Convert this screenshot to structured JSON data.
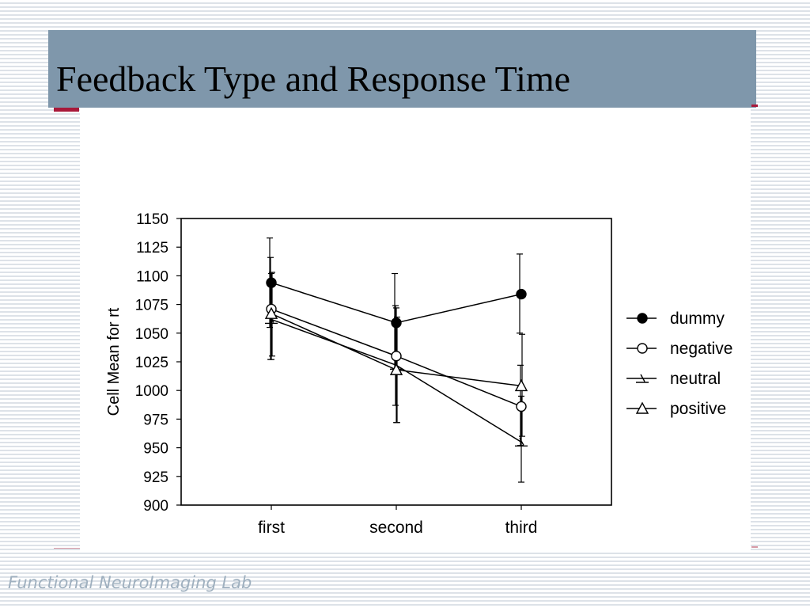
{
  "slide": {
    "title": "Feedback Type and Response Time",
    "footer": "Functional NeuroImaging Lab"
  },
  "chart_data": {
    "type": "line",
    "title": "",
    "xlabel": "",
    "ylabel": "Cell Mean for rt",
    "categories": [
      "first",
      "second",
      "third"
    ],
    "ylim": [
      900,
      1150
    ],
    "yticks": [
      900,
      925,
      950,
      975,
      1000,
      1025,
      1050,
      1075,
      1100,
      1125,
      1150
    ],
    "grid": false,
    "legend_position": "right",
    "error_bars": true,
    "series": [
      {
        "name": "dummy",
        "marker": "filled-circle",
        "values": [
          1094,
          1059,
          1084
        ],
        "error_low": [
          1055,
          1016,
          1050
        ],
        "error_high": [
          1133,
          1102,
          1119
        ]
      },
      {
        "name": "negative",
        "marker": "open-circle",
        "values": [
          1071,
          1030,
          986
        ],
        "error_low": [
          1027,
          987,
          952
        ],
        "error_high": [
          1116,
          1074,
          1022
        ]
      },
      {
        "name": "neutral",
        "marker": "tick-dash",
        "values": [
          1062,
          1022,
          955
        ],
        "error_low": [
          1027,
          972,
          920
        ],
        "error_high": [
          1102,
          1072,
          995
        ]
      },
      {
        "name": "positive",
        "marker": "open-triangle",
        "values": [
          1067,
          1018,
          1004
        ],
        "error_low": [
          1030,
          972,
          960
        ],
        "error_high": [
          1103,
          1064,
          1049
        ]
      }
    ]
  }
}
